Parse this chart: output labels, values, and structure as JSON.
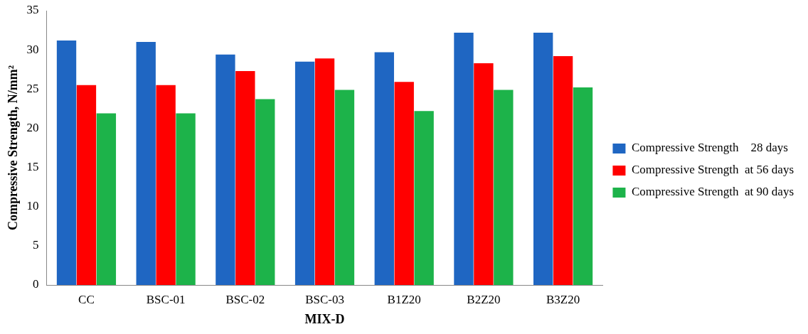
{
  "chart_data": {
    "type": "bar",
    "xlabel": "MIX-D",
    "ylabel": "Compressive Strength, N/mm²",
    "categories": [
      "CC",
      "BSC-01",
      "BSC-02",
      "BSC-03",
      "B1Z20",
      "B2Z20",
      "B3Z20"
    ],
    "series": [
      {
        "name": "Compressive Strength    28 days",
        "color": "#1f66c2",
        "values": [
          31.2,
          31.0,
          29.4,
          28.5,
          29.7,
          32.2,
          32.2
        ]
      },
      {
        "name": "Compressive Strength  at 56 days",
        "color": "#ff0000",
        "values": [
          25.5,
          25.5,
          27.3,
          28.9,
          25.9,
          28.3,
          29.2
        ]
      },
      {
        "name": "Compressive Strength  at 90 days",
        "color": "#1db34a",
        "values": [
          21.9,
          21.9,
          23.7,
          24.9,
          22.2,
          24.9,
          25.2
        ]
      }
    ],
    "ylim": [
      0,
      35
    ],
    "yticks": [
      0,
      5,
      10,
      15,
      20,
      25,
      30,
      35
    ],
    "grid": false,
    "legend": "right"
  }
}
